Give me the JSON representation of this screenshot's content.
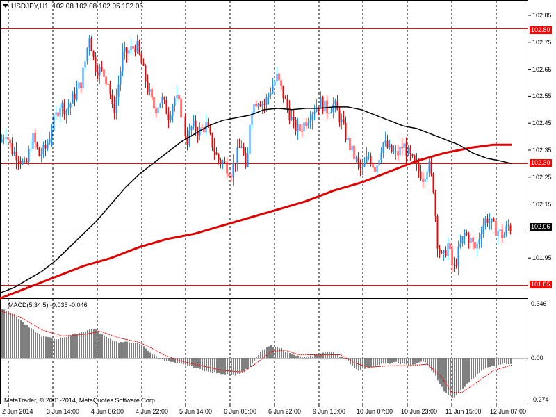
{
  "header": {
    "symbol": "USDJPY,H1",
    "ohlc": "102.08 102.08 102.05 102.06"
  },
  "indicator": {
    "label": "MACD(5,34,5) -0.035 -0.046",
    "axis_top": "0.346",
    "axis_zero": "0.00",
    "axis_bottom": "-0.274"
  },
  "price_levels": {
    "top_line": "102.80",
    "mid_line": "102.30",
    "bottom_line": "101.85",
    "current": "102.06"
  },
  "copyright": "MetaTrader, © 2001-2014, MetaQuotes Software Corp.",
  "colors": {
    "bull": "#1e90ff",
    "bear": "#ff0000",
    "level_line": "#ff0000",
    "ma_fast": "#000000",
    "ma_slow": "#e00000",
    "hist": "#808080",
    "signal": "#ff0000"
  },
  "chart_data": {
    "type": "candlestick",
    "instrument": "USDJPY",
    "timeframe": "H1",
    "ylim": [
      101.78,
      102.88
    ],
    "y_ticks": [
      "102.85",
      "102.75",
      "102.65",
      "102.55",
      "102.45",
      "102.35",
      "102.25",
      "102.15",
      "101.95"
    ],
    "x_ticks": [
      "2 Jun 2014",
      "3 Jun 14:00",
      "4 Jun 06:00",
      "4 Jun 22:00",
      "5 Jun 14:00",
      "6 Jun 06:00",
      "6 Jun 22:00",
      "9 Jun 15:00",
      "10 Jun 07:00",
      "10 Jun 23:00",
      "11 Jun 15:00",
      "12 Jun 07:00"
    ],
    "horizontal_levels": [
      102.8,
      102.3,
      101.85
    ],
    "last_price": 102.06,
    "price_path": [
      [
        0,
        102.38
      ],
      [
        8,
        102.42
      ],
      [
        16,
        102.35
      ],
      [
        26,
        102.33
      ],
      [
        36,
        102.28
      ],
      [
        46,
        102.4
      ],
      [
        56,
        102.33
      ],
      [
        66,
        102.36
      ],
      [
        76,
        102.45
      ],
      [
        86,
        102.52
      ],
      [
        96,
        102.5
      ],
      [
        106,
        102.55
      ],
      [
        116,
        102.6
      ],
      [
        122,
        102.68
      ],
      [
        128,
        102.78
      ],
      [
        136,
        102.66
      ],
      [
        146,
        102.64
      ],
      [
        156,
        102.6
      ],
      [
        162,
        102.48
      ],
      [
        168,
        102.56
      ],
      [
        176,
        102.7
      ],
      [
        186,
        102.72
      ],
      [
        196,
        102.74
      ],
      [
        204,
        102.66
      ],
      [
        212,
        102.58
      ],
      [
        222,
        102.5
      ],
      [
        232,
        102.54
      ],
      [
        242,
        102.48
      ],
      [
        252,
        102.55
      ],
      [
        262,
        102.48
      ],
      [
        268,
        102.38
      ],
      [
        276,
        102.44
      ],
      [
        286,
        102.42
      ],
      [
        296,
        102.44
      ],
      [
        304,
        102.38
      ],
      [
        312,
        102.32
      ],
      [
        322,
        102.3
      ],
      [
        332,
        102.27
      ],
      [
        340,
        102.33
      ],
      [
        348,
        102.38
      ],
      [
        354,
        102.24
      ],
      [
        360,
        102.5
      ],
      [
        370,
        102.54
      ],
      [
        380,
        102.52
      ],
      [
        390,
        102.58
      ],
      [
        398,
        102.62
      ],
      [
        406,
        102.56
      ],
      [
        414,
        102.5
      ],
      [
        422,
        102.44
      ],
      [
        430,
        102.42
      ],
      [
        440,
        102.46
      ],
      [
        450,
        102.5
      ],
      [
        460,
        102.53
      ],
      [
        470,
        102.5
      ],
      [
        480,
        102.52
      ],
      [
        490,
        102.46
      ],
      [
        500,
        102.38
      ],
      [
        510,
        102.32
      ],
      [
        520,
        102.27
      ],
      [
        530,
        102.33
      ],
      [
        540,
        102.28
      ],
      [
        550,
        102.38
      ],
      [
        560,
        102.35
      ],
      [
        570,
        102.33
      ],
      [
        580,
        102.37
      ],
      [
        590,
        102.32
      ],
      [
        600,
        102.28
      ],
      [
        608,
        102.25
      ],
      [
        616,
        102.3
      ],
      [
        624,
        102.2
      ],
      [
        628,
        102.02
      ],
      [
        636,
        101.94
      ],
      [
        644,
        102.0
      ],
      [
        652,
        101.9
      ],
      [
        660,
        101.98
      ],
      [
        668,
        102.04
      ],
      [
        676,
        102.02
      ],
      [
        684,
        101.98
      ],
      [
        692,
        102.06
      ],
      [
        700,
        102.1
      ],
      [
        708,
        102.07
      ],
      [
        716,
        102.05
      ],
      [
        724,
        102.03
      ],
      [
        730,
        102.07
      ],
      [
        736,
        102.06
      ]
    ],
    "ma_fast_path": [
      [
        0,
        101.82
      ],
      [
        20,
        101.84
      ],
      [
        40,
        101.87
      ],
      [
        60,
        101.9
      ],
      [
        80,
        101.94
      ],
      [
        100,
        101.99
      ],
      [
        120,
        102.04
      ],
      [
        140,
        102.09
      ],
      [
        160,
        102.15
      ],
      [
        180,
        102.21
      ],
      [
        200,
        102.26
      ],
      [
        220,
        102.3
      ],
      [
        240,
        102.34
      ],
      [
        260,
        102.38
      ],
      [
        280,
        102.41
      ],
      [
        300,
        102.44
      ],
      [
        320,
        102.46
      ],
      [
        340,
        102.47
      ],
      [
        360,
        102.48
      ],
      [
        380,
        102.5
      ],
      [
        400,
        102.505
      ],
      [
        420,
        102.5
      ],
      [
        440,
        102.505
      ],
      [
        460,
        102.505
      ],
      [
        480,
        102.51
      ],
      [
        500,
        102.51
      ],
      [
        520,
        102.5
      ],
      [
        540,
        102.48
      ],
      [
        560,
        102.46
      ],
      [
        580,
        102.44
      ],
      [
        600,
        102.43
      ],
      [
        620,
        102.41
      ],
      [
        640,
        102.39
      ],
      [
        660,
        102.37
      ],
      [
        680,
        102.34
      ],
      [
        700,
        102.32
      ],
      [
        720,
        102.31
      ],
      [
        736,
        102.3
      ]
    ],
    "ma_slow_path": [
      [
        0,
        101.8
      ],
      [
        40,
        101.84
      ],
      [
        80,
        101.88
      ],
      [
        120,
        101.92
      ],
      [
        160,
        101.95
      ],
      [
        200,
        101.99
      ],
      [
        240,
        102.02
      ],
      [
        280,
        102.04
      ],
      [
        320,
        102.07
      ],
      [
        360,
        102.1
      ],
      [
        400,
        102.13
      ],
      [
        440,
        102.16
      ],
      [
        480,
        102.2
      ],
      [
        520,
        102.23
      ],
      [
        560,
        102.27
      ],
      [
        600,
        102.31
      ],
      [
        640,
        102.34
      ],
      [
        680,
        102.36
      ],
      [
        710,
        102.37
      ],
      [
        736,
        102.37
      ]
    ],
    "macd_hist_path": [
      [
        0,
        0.32
      ],
      [
        20,
        0.28
      ],
      [
        40,
        0.2
      ],
      [
        60,
        0.14
      ],
      [
        80,
        0.12
      ],
      [
        100,
        0.14
      ],
      [
        120,
        0.17
      ],
      [
        135,
        0.19
      ],
      [
        150,
        0.14
      ],
      [
        170,
        0.1
      ],
      [
        190,
        0.1
      ],
      [
        205,
        0.08
      ],
      [
        220,
        0.02
      ],
      [
        240,
        -0.02
      ],
      [
        260,
        -0.04
      ],
      [
        280,
        -0.06
      ],
      [
        300,
        -0.09
      ],
      [
        320,
        -0.1
      ],
      [
        340,
        -0.11
      ],
      [
        360,
        -0.06
      ],
      [
        375,
        0.04
      ],
      [
        390,
        0.08
      ],
      [
        405,
        0.06
      ],
      [
        420,
        0.02
      ],
      [
        440,
        0.0
      ],
      [
        460,
        0.03
      ],
      [
        480,
        0.04
      ],
      [
        500,
        -0.02
      ],
      [
        515,
        -0.08
      ],
      [
        530,
        -0.06
      ],
      [
        550,
        -0.04
      ],
      [
        570,
        -0.03
      ],
      [
        590,
        -0.05
      ],
      [
        610,
        -0.02
      ],
      [
        625,
        -0.1
      ],
      [
        640,
        -0.22
      ],
      [
        652,
        -0.26
      ],
      [
        665,
        -0.2
      ],
      [
        680,
        -0.13
      ],
      [
        700,
        -0.06
      ],
      [
        720,
        -0.04
      ],
      [
        736,
        -0.035
      ]
    ],
    "macd_signal_path": [
      [
        0,
        0.3
      ],
      [
        30,
        0.26
      ],
      [
        60,
        0.18
      ],
      [
        90,
        0.14
      ],
      [
        120,
        0.15
      ],
      [
        145,
        0.17
      ],
      [
        170,
        0.13
      ],
      [
        200,
        0.1
      ],
      [
        215,
        0.07
      ],
      [
        235,
        0.02
      ],
      [
        260,
        -0.02
      ],
      [
        290,
        -0.05
      ],
      [
        320,
        -0.08
      ],
      [
        350,
        -0.09
      ],
      [
        370,
        -0.03
      ],
      [
        390,
        0.04
      ],
      [
        410,
        0.05
      ],
      [
        430,
        0.02
      ],
      [
        460,
        0.02
      ],
      [
        490,
        0.02
      ],
      [
        510,
        -0.03
      ],
      [
        530,
        -0.06
      ],
      [
        560,
        -0.05
      ],
      [
        590,
        -0.05
      ],
      [
        615,
        -0.04
      ],
      [
        635,
        -0.12
      ],
      [
        650,
        -0.22
      ],
      [
        665,
        -0.22
      ],
      [
        685,
        -0.16
      ],
      [
        710,
        -0.08
      ],
      [
        736,
        -0.046
      ]
    ]
  }
}
